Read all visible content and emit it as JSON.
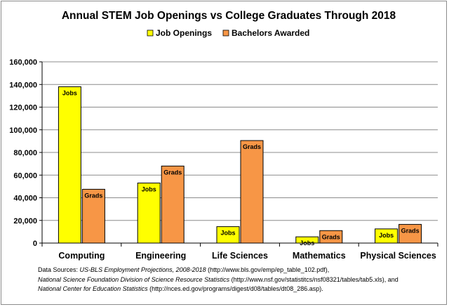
{
  "chart_data": {
    "type": "bar",
    "title": "Annual STEM Job Openings vs College Graduates Through 2018",
    "categories": [
      "Computing",
      "Engineering",
      "Life Sciences",
      "Mathematics",
      "Physical Sciences"
    ],
    "series": [
      {
        "name": "Job Openings",
        "color": "#ffff00",
        "values": [
          138000,
          53000,
          14500,
          5500,
          12500
        ],
        "label": "Jobs"
      },
      {
        "name": "Bachelors Awarded",
        "color": "#f79646",
        "values": [
          47500,
          68000,
          90500,
          11000,
          16500
        ],
        "label": "Grads"
      }
    ],
    "ylim": [
      0,
      160000
    ],
    "yticks": [
      0,
      20000,
      40000,
      60000,
      80000,
      100000,
      120000,
      140000,
      160000
    ],
    "ytick_labels": [
      "0",
      "20,000",
      "40,000",
      "60,000",
      "80,000",
      "100,000",
      "120,000",
      "140,000",
      "160,000"
    ],
    "xlabel": "",
    "ylabel": "",
    "grid": true,
    "legend_position": "top"
  },
  "sources": {
    "lines": [
      [
        {
          "t": "Data Sources: ",
          "i": false
        },
        {
          "t": "US-BLS Employment Projections, 2008-2018",
          "i": true
        },
        {
          "t": " (http://www.bls.gov/emp/ep_table_102.pdf),",
          "i": false
        }
      ],
      [
        {
          "t": "National Science Foundation Division of Science Resource Statistics",
          "i": true
        },
        {
          "t": " (http://www.nsf.gov/statistitcs/nsf08321/tables/tab5.xls), and",
          "i": false
        }
      ],
      [
        {
          "t": "National Center for Education Statistics",
          "i": true
        },
        {
          "t": " (http://nces.ed.gov/programs/digest/d08/tables/dt08_286.asp).",
          "i": false
        }
      ]
    ]
  }
}
